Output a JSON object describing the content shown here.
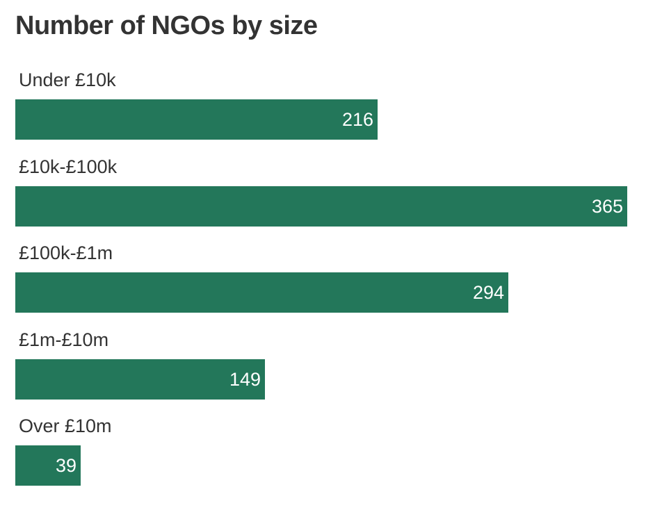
{
  "chart_data": {
    "type": "bar",
    "orientation": "horizontal",
    "title": "Number of NGOs by size",
    "categories": [
      "Under £10k",
      "£10k-£100k",
      "£100k-£1m",
      "£1m-£10m",
      "Over £10m"
    ],
    "values": [
      216,
      365,
      294,
      149,
      39
    ],
    "value_labels": [
      "216",
      "365",
      "294",
      "149",
      "39"
    ],
    "xlim": [
      0,
      365
    ],
    "grid": false,
    "bar_color": "#23775a"
  }
}
